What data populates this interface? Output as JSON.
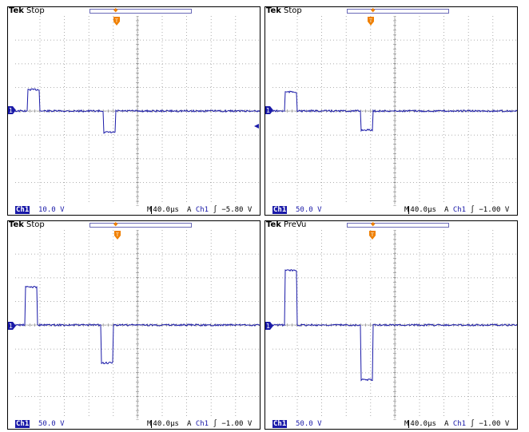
{
  "colors": {
    "trace": "#1a1aa8",
    "trigger_marker": "#f08000",
    "grid": "#808080"
  },
  "panels": [
    {
      "brand": "Tek",
      "mode": "Stop",
      "channel_badge": "Ch1",
      "volts_per_div": "10.0 V",
      "timebase_prefix": "M",
      "timebase": "40.0µs",
      "trigger_type": "A",
      "trigger_source": "Ch1",
      "trigger_slope": "∫",
      "trigger_level": "−5.80 V",
      "waveform": {
        "baseline_div": 0.0,
        "pulse1": {
          "start_div": 0.5,
          "end_div": 1.0,
          "level_div": 0.9
        },
        "pulse2": {
          "start_div": 3.6,
          "end_div": 4.1,
          "level_div": -0.9
        }
      }
    },
    {
      "brand": "Tek",
      "mode": "Stop",
      "channel_badge": "Ch1",
      "volts_per_div": "50.0 V",
      "timebase_prefix": "M",
      "timebase": "40.0µs",
      "trigger_type": "A",
      "trigger_source": "Ch1",
      "trigger_slope": "∫",
      "trigger_level": "−1.00 V",
      "waveform": {
        "baseline_div": 0.0,
        "pulse1": {
          "start_div": 0.5,
          "end_div": 1.0,
          "level_div": 0.8
        },
        "pulse2": {
          "start_div": 3.6,
          "end_div": 4.1,
          "level_div": -0.8
        }
      }
    },
    {
      "brand": "Tek",
      "mode": "Stop",
      "channel_badge": "Ch1",
      "volts_per_div": "50.0 V",
      "timebase_prefix": "M",
      "timebase": "40.0µs",
      "trigger_type": "A",
      "trigger_source": "Ch1",
      "trigger_slope": "∫",
      "trigger_level": "−1.00 V",
      "waveform": {
        "baseline_div": 0.0,
        "pulse1": {
          "start_div": 0.4,
          "end_div": 0.9,
          "level_div": 1.6
        },
        "pulse2": {
          "start_div": 3.5,
          "end_div": 4.0,
          "level_div": -1.6
        }
      }
    },
    {
      "brand": "Tek",
      "mode": "PreVu",
      "channel_badge": "Ch1",
      "volts_per_div": "50.0 V",
      "timebase_prefix": "M",
      "timebase": "40.0µs",
      "trigger_type": "A",
      "trigger_source": "Ch1",
      "trigger_slope": "∫",
      "trigger_level": "−1.00 V",
      "waveform": {
        "baseline_div": 0.0,
        "pulse1": {
          "start_div": 0.5,
          "end_div": 1.0,
          "level_div": 2.3
        },
        "pulse2": {
          "start_div": 3.6,
          "end_div": 4.1,
          "level_div": -2.3
        }
      }
    }
  ]
}
